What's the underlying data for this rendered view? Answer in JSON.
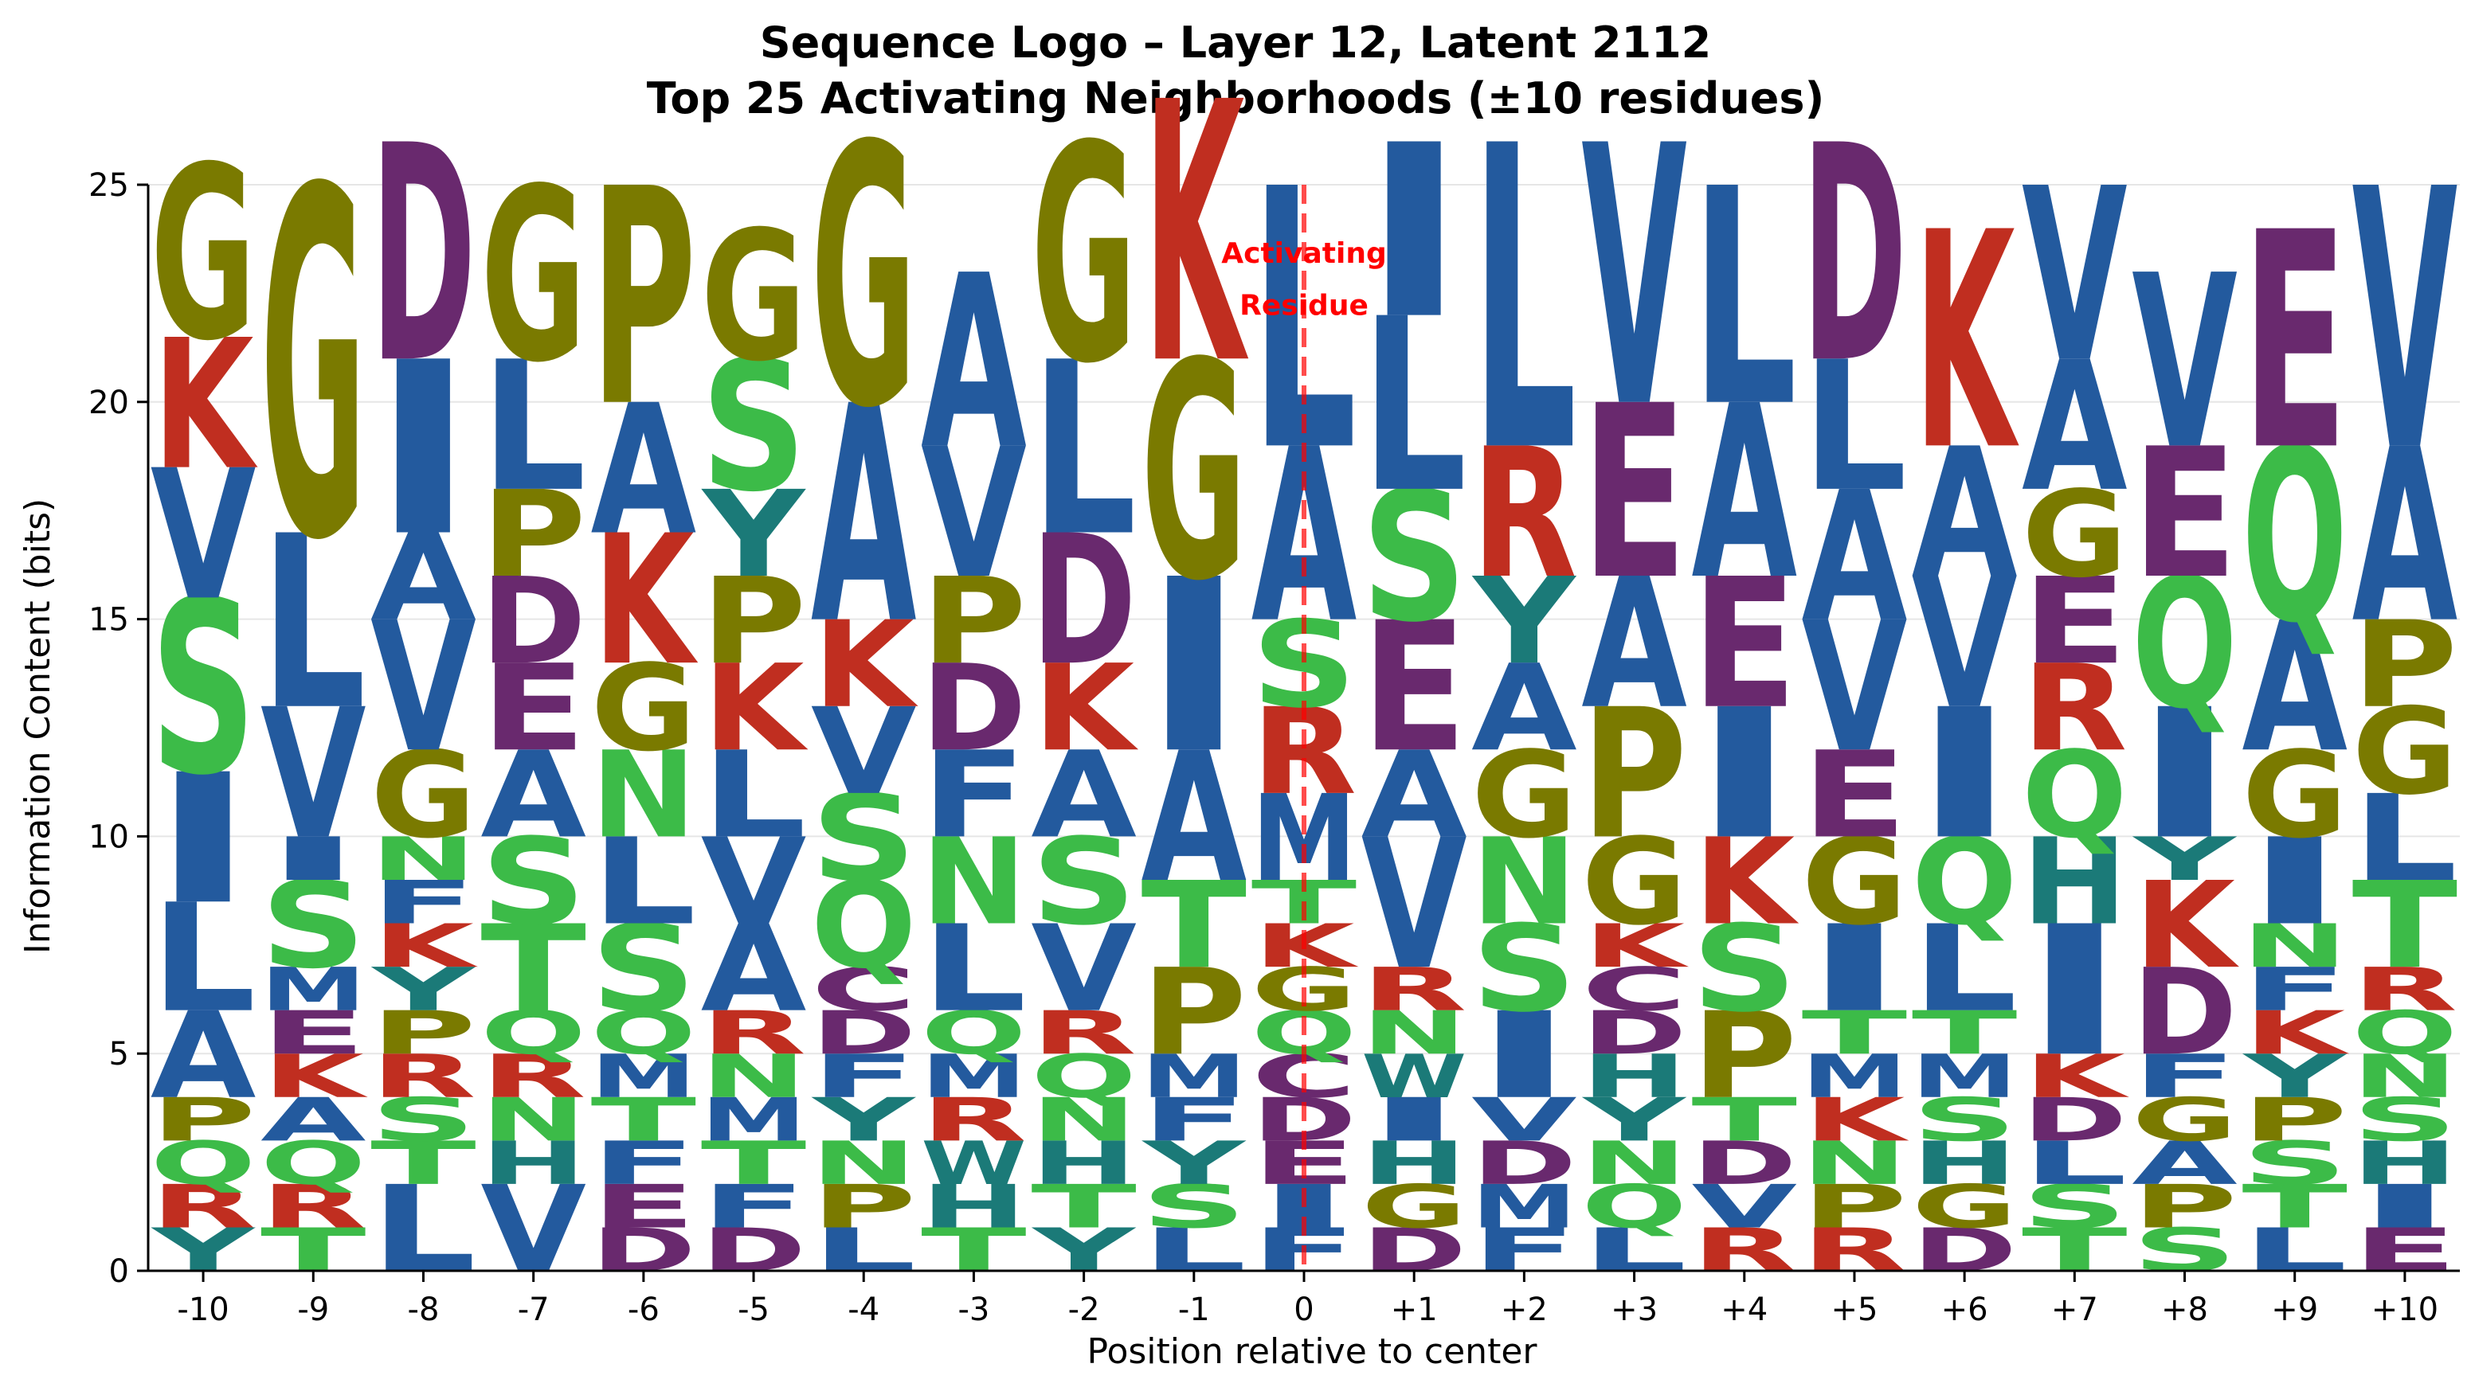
{
  "chart_data": {
    "type": "sequence-logo",
    "title": "Sequence Logo – Layer 12, Latent 2112",
    "subtitle": "Top 25 Activating Neighborhoods (±10 residues)",
    "xlabel": "Position relative to center",
    "ylabel": "Information Content (bits)",
    "ylim": [
      0,
      25
    ],
    "yticks": [
      0,
      5,
      10,
      15,
      20,
      25
    ],
    "grid": true,
    "annotation": {
      "text_line1": "Activating",
      "text_line2": "Residue",
      "position": "0",
      "color": "#ff0000"
    },
    "colors": {
      "hydrophobic": "#235a9e",
      "polar": "#3cbb48",
      "special": "#7a7a00",
      "basic": "#c02e20",
      "acidic": "#69296e",
      "aromatic_polar": "#1b7a78"
    },
    "residue_colors": {
      "A": "#235a9e",
      "V": "#235a9e",
      "L": "#235a9e",
      "I": "#235a9e",
      "M": "#235a9e",
      "F": "#235a9e",
      "S": "#3cbb48",
      "T": "#3cbb48",
      "N": "#3cbb48",
      "Q": "#3cbb48",
      "G": "#7a7a00",
      "P": "#7a7a00",
      "K": "#c02e20",
      "R": "#c02e20",
      "D": "#69296e",
      "E": "#69296e",
      "C": "#69296e",
      "H": "#1b7a78",
      "Y": "#1b7a78",
      "W": "#1b7a78"
    },
    "positions": [
      {
        "label": "-10",
        "stack": [
          [
            "Y",
            1
          ],
          [
            "R",
            1
          ],
          [
            "Q",
            1
          ],
          [
            "P",
            1
          ],
          [
            "A",
            2
          ],
          [
            "L",
            2.5
          ],
          [
            "I",
            3
          ],
          [
            "S",
            4
          ],
          [
            "V",
            3
          ],
          [
            "K",
            3
          ],
          [
            "G",
            4
          ]
        ]
      },
      {
        "label": "-9",
        "stack": [
          [
            "T",
            1
          ],
          [
            "R",
            1
          ],
          [
            "Q",
            1
          ],
          [
            "A",
            1
          ],
          [
            "K",
            1
          ],
          [
            "E",
            1
          ],
          [
            "M",
            1
          ],
          [
            "S",
            2
          ],
          [
            "I",
            1
          ],
          [
            "V",
            3
          ],
          [
            "L",
            4
          ],
          [
            "G",
            8
          ]
        ]
      },
      {
        "label": "-8",
        "stack": [
          [
            "L",
            2
          ],
          [
            "T",
            1
          ],
          [
            "S",
            1
          ],
          [
            "R",
            1
          ],
          [
            "P",
            1
          ],
          [
            "Y",
            1
          ],
          [
            "K",
            1
          ],
          [
            "F",
            1
          ],
          [
            "N",
            1
          ],
          [
            "G",
            2
          ],
          [
            "V",
            3
          ],
          [
            "A",
            2
          ],
          [
            "I",
            4
          ],
          [
            "D",
            5
          ]
        ]
      },
      {
        "label": "-7",
        "stack": [
          [
            "V",
            2
          ],
          [
            "H",
            1
          ],
          [
            "N",
            1
          ],
          [
            "R",
            1
          ],
          [
            "Q",
            1
          ],
          [
            "T",
            2
          ],
          [
            "S",
            2
          ],
          [
            "A",
            2
          ],
          [
            "E",
            2
          ],
          [
            "D",
            2
          ],
          [
            "P",
            2
          ],
          [
            "L",
            3
          ],
          [
            "G",
            4
          ]
        ]
      },
      {
        "label": "-6",
        "stack": [
          [
            "D",
            1
          ],
          [
            "E",
            1
          ],
          [
            "F",
            1
          ],
          [
            "T",
            1
          ],
          [
            "M",
            1
          ],
          [
            "Q",
            1
          ],
          [
            "S",
            2
          ],
          [
            "L",
            2
          ],
          [
            "N",
            2
          ],
          [
            "G",
            2
          ],
          [
            "K",
            3
          ],
          [
            "A",
            3
          ],
          [
            "P",
            5
          ]
        ]
      },
      {
        "label": "-5",
        "stack": [
          [
            "D",
            1
          ],
          [
            "F",
            1
          ],
          [
            "T",
            1
          ],
          [
            "M",
            1
          ],
          [
            "N",
            1
          ],
          [
            "R",
            1
          ],
          [
            "A",
            2
          ],
          [
            "V",
            2
          ],
          [
            "L",
            2
          ],
          [
            "K",
            2
          ],
          [
            "P",
            2
          ],
          [
            "Y",
            2
          ],
          [
            "S",
            3
          ],
          [
            "G",
            3
          ]
        ]
      },
      {
        "label": "-4",
        "stack": [
          [
            "L",
            1
          ],
          [
            "P",
            1
          ],
          [
            "N",
            1
          ],
          [
            "Y",
            1
          ],
          [
            "F",
            1
          ],
          [
            "D",
            1
          ],
          [
            "C",
            1
          ],
          [
            "Q",
            2
          ],
          [
            "S",
            2
          ],
          [
            "V",
            2
          ],
          [
            "K",
            2
          ],
          [
            "A",
            5
          ],
          [
            "G",
            6
          ]
        ]
      },
      {
        "label": "-3",
        "stack": [
          [
            "T",
            1
          ],
          [
            "H",
            1
          ],
          [
            "W",
            1
          ],
          [
            "R",
            1
          ],
          [
            "M",
            1
          ],
          [
            "Q",
            1
          ],
          [
            "L",
            2
          ],
          [
            "N",
            2
          ],
          [
            "F",
            2
          ],
          [
            "D",
            2
          ],
          [
            "P",
            2
          ],
          [
            "V",
            3
          ],
          [
            "A",
            4
          ]
        ]
      },
      {
        "label": "-2",
        "stack": [
          [
            "Y",
            1
          ],
          [
            "T",
            1
          ],
          [
            "H",
            1
          ],
          [
            "N",
            1
          ],
          [
            "Q",
            1
          ],
          [
            "R",
            1
          ],
          [
            "V",
            2
          ],
          [
            "S",
            2
          ],
          [
            "A",
            2
          ],
          [
            "K",
            2
          ],
          [
            "D",
            3
          ],
          [
            "L",
            4
          ],
          [
            "G",
            5
          ]
        ]
      },
      {
        "label": "-1",
        "stack": [
          [
            "L",
            1
          ],
          [
            "S",
            1
          ],
          [
            "Y",
            1
          ],
          [
            "F",
            1
          ],
          [
            "M",
            1
          ],
          [
            "P",
            2
          ],
          [
            "T",
            2
          ],
          [
            "A",
            3
          ],
          [
            "I",
            4
          ],
          [
            "G",
            5
          ],
          [
            "K",
            6
          ]
        ]
      },
      {
        "label": "0",
        "stack": [
          [
            "F",
            1
          ],
          [
            "I",
            1
          ],
          [
            "E",
            1
          ],
          [
            "D",
            1
          ],
          [
            "C",
            1
          ],
          [
            "Q",
            1
          ],
          [
            "G",
            1
          ],
          [
            "K",
            1
          ],
          [
            "T",
            1
          ],
          [
            "M",
            2
          ],
          [
            "R",
            2
          ],
          [
            "S",
            2
          ],
          [
            "A",
            4
          ],
          [
            "L",
            6
          ]
        ]
      },
      {
        "label": "+1",
        "stack": [
          [
            "D",
            1
          ],
          [
            "G",
            1
          ],
          [
            "H",
            1
          ],
          [
            "I",
            1
          ],
          [
            "W",
            1
          ],
          [
            "N",
            1
          ],
          [
            "R",
            1
          ],
          [
            "V",
            3
          ],
          [
            "A",
            2
          ],
          [
            "E",
            3
          ],
          [
            "S",
            3
          ],
          [
            "L",
            4
          ],
          [
            "I",
            4
          ]
        ]
      },
      {
        "label": "+2",
        "stack": [
          [
            "F",
            1
          ],
          [
            "M",
            1
          ],
          [
            "D",
            1
          ],
          [
            "V",
            1
          ],
          [
            "I",
            2
          ],
          [
            "S",
            2
          ],
          [
            "N",
            2
          ],
          [
            "G",
            2
          ],
          [
            "A",
            2
          ],
          [
            "Y",
            2
          ],
          [
            "R",
            3
          ],
          [
            "L",
            7
          ]
        ]
      },
      {
        "label": "+3",
        "stack": [
          [
            "L",
            1
          ],
          [
            "Q",
            1
          ],
          [
            "N",
            1
          ],
          [
            "Y",
            1
          ],
          [
            "H",
            1
          ],
          [
            "D",
            1
          ],
          [
            "C",
            1
          ],
          [
            "K",
            1
          ],
          [
            "G",
            2
          ],
          [
            "P",
            3
          ],
          [
            "A",
            3
          ],
          [
            "E",
            4
          ],
          [
            "V",
            6
          ]
        ]
      },
      {
        "label": "+4",
        "stack": [
          [
            "R",
            1
          ],
          [
            "V",
            1
          ],
          [
            "D",
            1
          ],
          [
            "T",
            1
          ],
          [
            "P",
            2
          ],
          [
            "S",
            2
          ],
          [
            "K",
            2
          ],
          [
            "I",
            3
          ],
          [
            "E",
            3
          ],
          [
            "A",
            4
          ],
          [
            "L",
            5
          ]
        ]
      },
      {
        "label": "+5",
        "stack": [
          [
            "R",
            1
          ],
          [
            "P",
            1
          ],
          [
            "N",
            1
          ],
          [
            "K",
            1
          ],
          [
            "M",
            1
          ],
          [
            "T",
            1
          ],
          [
            "I",
            2
          ],
          [
            "G",
            2
          ],
          [
            "E",
            2
          ],
          [
            "V",
            3
          ],
          [
            "A",
            3
          ],
          [
            "L",
            3
          ],
          [
            "D",
            5
          ]
        ]
      },
      {
        "label": "+6",
        "stack": [
          [
            "D",
            1
          ],
          [
            "G",
            1
          ],
          [
            "H",
            1
          ],
          [
            "S",
            1
          ],
          [
            "M",
            1
          ],
          [
            "T",
            1
          ],
          [
            "L",
            2
          ],
          [
            "Q",
            2
          ],
          [
            "I",
            3
          ],
          [
            "V",
            3
          ],
          [
            "A",
            3
          ],
          [
            "K",
            5
          ]
        ]
      },
      {
        "label": "+7",
        "stack": [
          [
            "T",
            1
          ],
          [
            "S",
            1
          ],
          [
            "L",
            1
          ],
          [
            "D",
            1
          ],
          [
            "K",
            1
          ],
          [
            "I",
            3
          ],
          [
            "H",
            2
          ],
          [
            "Q",
            2
          ],
          [
            "R",
            2
          ],
          [
            "E",
            2
          ],
          [
            "G",
            2
          ],
          [
            "A",
            3
          ],
          [
            "V",
            4
          ]
        ]
      },
      {
        "label": "+8",
        "stack": [
          [
            "S",
            1
          ],
          [
            "P",
            1
          ],
          [
            "A",
            1
          ],
          [
            "G",
            1
          ],
          [
            "F",
            1
          ],
          [
            "D",
            2
          ],
          [
            "K",
            2
          ],
          [
            "Y",
            1
          ],
          [
            "I",
            3
          ],
          [
            "Q",
            3
          ],
          [
            "E",
            3
          ],
          [
            "V",
            4
          ]
        ]
      },
      {
        "label": "+9",
        "stack": [
          [
            "L",
            1
          ],
          [
            "T",
            1
          ],
          [
            "S",
            1
          ],
          [
            "P",
            1
          ],
          [
            "Y",
            1
          ],
          [
            "K",
            1
          ],
          [
            "F",
            1
          ],
          [
            "N",
            1
          ],
          [
            "I",
            2
          ],
          [
            "G",
            2
          ],
          [
            "A",
            3
          ],
          [
            "Q",
            4
          ],
          [
            "E",
            5
          ]
        ]
      },
      {
        "label": "+10",
        "stack": [
          [
            "E",
            1
          ],
          [
            "I",
            1
          ],
          [
            "H",
            1
          ],
          [
            "S",
            1
          ],
          [
            "N",
            1
          ],
          [
            "Q",
            1
          ],
          [
            "R",
            1
          ],
          [
            "T",
            2
          ],
          [
            "L",
            2
          ],
          [
            "G",
            2
          ],
          [
            "P",
            2
          ],
          [
            "A",
            4
          ],
          [
            "V",
            6
          ]
        ]
      }
    ]
  }
}
